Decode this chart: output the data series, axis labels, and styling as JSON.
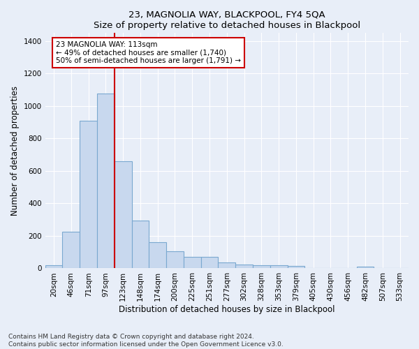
{
  "title": "23, MAGNOLIA WAY, BLACKPOOL, FY4 5QA",
  "subtitle": "Size of property relative to detached houses in Blackpool",
  "xlabel": "Distribution of detached houses by size in Blackpool",
  "ylabel": "Number of detached properties",
  "categories": [
    "20sqm",
    "46sqm",
    "71sqm",
    "97sqm",
    "123sqm",
    "148sqm",
    "174sqm",
    "200sqm",
    "225sqm",
    "251sqm",
    "277sqm",
    "302sqm",
    "328sqm",
    "353sqm",
    "379sqm",
    "405sqm",
    "430sqm",
    "456sqm",
    "482sqm",
    "507sqm",
    "533sqm"
  ],
  "values": [
    20,
    225,
    910,
    1075,
    660,
    295,
    160,
    105,
    70,
    70,
    35,
    25,
    20,
    20,
    15,
    0,
    0,
    0,
    10,
    0,
    0
  ],
  "bar_facecolor": "#c8d8ee",
  "bar_edgecolor": "#7aa8d0",
  "vline_color": "#cc0000",
  "annotation_text": "23 MAGNOLIA WAY: 113sqm\n← 49% of detached houses are smaller (1,740)\n50% of semi-detached houses are larger (1,791) →",
  "annotation_box_edgecolor": "#cc0000",
  "ylim": [
    0,
    1450
  ],
  "yticks": [
    0,
    200,
    400,
    600,
    800,
    1000,
    1200,
    1400
  ],
  "footnote": "Contains HM Land Registry data © Crown copyright and database right 2024.\nContains public sector information licensed under the Open Government Licence v3.0.",
  "background_color": "#e8eef8",
  "plot_background": "#e8eef8",
  "grid_color": "#ffffff",
  "title_fontsize": 9.5,
  "axis_label_fontsize": 8.5,
  "tick_fontsize": 7.5,
  "footnote_fontsize": 6.5
}
